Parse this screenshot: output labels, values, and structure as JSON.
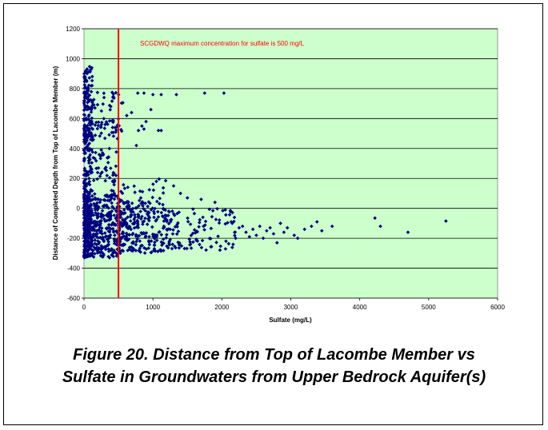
{
  "chart_data": {
    "type": "scatter",
    "xlabel": "Sulfate (mg/L)",
    "ylabel": "Distance of Completed Depth from Top of Lacombe Member (m)",
    "xlim": [
      0,
      6000
    ],
    "ylim": [
      -600,
      1200
    ],
    "x_ticks": [
      "0",
      "1000",
      "2000",
      "3000",
      "4000",
      "5000",
      "6000"
    ],
    "y_ticks": [
      "1200",
      "1000",
      "800",
      "600",
      "400",
      "200",
      "0",
      "-200",
      "-400",
      "-600"
    ],
    "grid": "horizontal",
    "plot_background": "#ccffcc",
    "marker_color": "#000080",
    "reference_line": {
      "x": 500,
      "color": "#ff0000",
      "label": "SCGDWQ maximum concentration for sulfate is 500 mg/L"
    },
    "point_clusters": [
      {
        "x_range": [
          0,
          120
        ],
        "y_range": [
          -320,
          950
        ],
        "count": 260
      },
      {
        "x_range": [
          0,
          500
        ],
        "y_range": [
          -330,
          100
        ],
        "count": 420
      },
      {
        "x_range": [
          500,
          1200
        ],
        "y_range": [
          -300,
          60
        ],
        "count": 280
      },
      {
        "x_range": [
          1200,
          2200
        ],
        "y_range": [
          -280,
          0
        ],
        "count": 110
      },
      {
        "x_range": [
          0,
          550
        ],
        "y_range": [
          450,
          600
        ],
        "count": 70
      },
      {
        "x_range": [
          0,
          650
        ],
        "y_range": [
          650,
          780
        ],
        "count": 40
      },
      {
        "x_range": [
          100,
          500
        ],
        "y_range": [
          180,
          400
        ],
        "count": 45
      },
      {
        "x_range": [
          400,
          1300
        ],
        "y_range": [
          60,
          200
        ],
        "count": 30
      }
    ],
    "series_points": [
      [
        5250,
        -85
      ],
      [
        4700,
        -160
      ],
      [
        4300,
        -120
      ],
      [
        4220,
        -65
      ],
      [
        3600,
        -120
      ],
      [
        3450,
        -150
      ],
      [
        3380,
        -90
      ],
      [
        3300,
        -120
      ],
      [
        3200,
        -140
      ],
      [
        3100,
        -200
      ],
      [
        3050,
        -180
      ],
      [
        2950,
        -130
      ],
      [
        2900,
        -160
      ],
      [
        2850,
        -100
      ],
      [
        2800,
        -230
      ],
      [
        2750,
        -170
      ],
      [
        2700,
        -130
      ],
      [
        2650,
        -150
      ],
      [
        2600,
        -200
      ],
      [
        2550,
        -120
      ],
      [
        2500,
        -180
      ],
      [
        2450,
        -140
      ],
      [
        2400,
        -190
      ],
      [
        2350,
        -160
      ],
      [
        2300,
        -120
      ],
      [
        2250,
        -130
      ],
      [
        2200,
        -200
      ],
      [
        2150,
        -100
      ],
      [
        1750,
        770
      ],
      [
        2030,
        770
      ],
      [
        1340,
        760
      ],
      [
        1120,
        760
      ],
      [
        1000,
        760
      ],
      [
        870,
        770
      ],
      [
        780,
        770
      ],
      [
        970,
        660
      ],
      [
        1120,
        520
      ],
      [
        1080,
        520
      ],
      [
        870,
        530
      ],
      [
        900,
        580
      ],
      [
        840,
        550
      ],
      [
        790,
        520
      ],
      [
        1050,
        180
      ],
      [
        1300,
        150
      ],
      [
        1400,
        100
      ],
      [
        1500,
        70
      ],
      [
        1700,
        60
      ],
      [
        1900,
        40
      ],
      [
        2050,
        -10
      ],
      [
        760,
        420
      ],
      [
        690,
        640
      ],
      [
        620,
        620
      ]
    ]
  },
  "caption": {
    "line1": "Figure 20. Distance from Top of Lacombe Member vs",
    "line2": "Sulfate in Groundwaters from Upper Bedrock Aquifer(s)"
  }
}
